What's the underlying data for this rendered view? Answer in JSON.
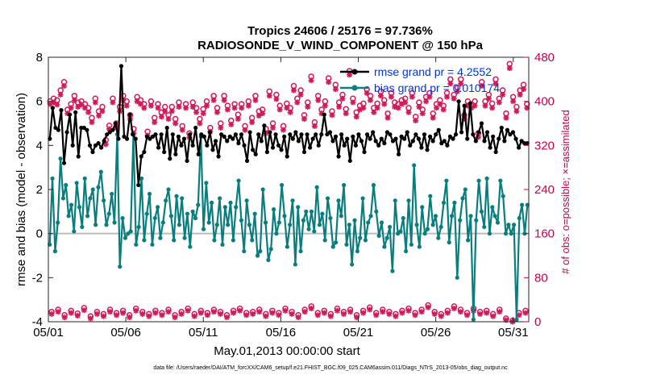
{
  "chart_data": {
    "type": "line",
    "title_line1": "Tropics 24606 / 25176 = 97.736%",
    "title_line2": "RADIOSONDE_V_WIND_COMPONENT @ 150 hPa",
    "xlabel": "May.01,2013 00:00:00 start",
    "ylabel": "rmse and bias (model - observation)",
    "y2label": "# of obs: o=possible; ×=assimilated",
    "footnote": "data file: /Users/raeder/DAI/ATM_forcXX/CAM6_setup/f.e21.FHIST_BGC.f09_025.CAM6assim.011/Diags_NTrS_2013-05/obs_diag_output.nc",
    "xlim": [
      1,
      32
    ],
    "ylim": [
      -4,
      8
    ],
    "y2lim": [
      0,
      480
    ],
    "x_ticks": [
      1,
      6,
      11,
      16,
      21,
      26,
      31
    ],
    "x_tick_labels": [
      "05/01",
      "05/06",
      "05/11",
      "05/16",
      "05/21",
      "05/26",
      "05/31"
    ],
    "y_ticks": [
      "-4",
      "-2",
      "0",
      "2",
      "4",
      "6",
      "8"
    ],
    "y2_ticks": [
      "0",
      "80",
      "160",
      "240",
      "320",
      "400",
      "480"
    ],
    "series": [
      {
        "name": "rmse",
        "legend": "rmse grand pr = 4.2552",
        "color": "#000000",
        "values": [
          4.3,
          5.7,
          4.8,
          4.7,
          5.6,
          3.2,
          4.6,
          5.4,
          4.0,
          5.5,
          3.5,
          4.8,
          4.8,
          4.7,
          4.0,
          3.7,
          4.0,
          4.1,
          3.9,
          4.2,
          4.5,
          4.6,
          4.7,
          5.0,
          4.3,
          7.6,
          4.4,
          4.3,
          5.4,
          4.5,
          4.3,
          2.2,
          3.5,
          3.7,
          4.4,
          4.3,
          4.4,
          4.5,
          3.9,
          4.5,
          3.7,
          4.8,
          3.4,
          4.5,
          3.6,
          4.4,
          4.0,
          4.3,
          3.3,
          4.5,
          4.0,
          4.8,
          3.6,
          4.5,
          4.4,
          4.0,
          4.6,
          3.8,
          4.2,
          3.5,
          4.5,
          4.4,
          4.2,
          4.4,
          4.3,
          4.5,
          4.1,
          4.5,
          4.0,
          3.3,
          4.6,
          3.8,
          3.6,
          4.5,
          4.2,
          4.9,
          3.7,
          4.6,
          3.9,
          4.5,
          4.0,
          3.8,
          4.4,
          3.5,
          4.5,
          4.3,
          4.6,
          4.2,
          4.5,
          3.7,
          4.5,
          3.9,
          4.3,
          4.5,
          4.0,
          4.5,
          5.4,
          4.5,
          4.6,
          4.2,
          4.4,
          3.5,
          4.5,
          4.0,
          4.3,
          3.3,
          4.4,
          4.0,
          4.5,
          4.2,
          3.7,
          4.5,
          4.3,
          4.6,
          4.2,
          4.0,
          4.3,
          4.1,
          4.6,
          4.5,
          4.2,
          4.3,
          3.6,
          4.4,
          4.3,
          4.6,
          4.0,
          4.2,
          4.5,
          4.3,
          3.9,
          4.5,
          3.8,
          4.4,
          4.2,
          4.5,
          4.7,
          4.1,
          4.2,
          4.0,
          4.4,
          4.3,
          4.5,
          6.0,
          4.6,
          5.8,
          4.3,
          5.9,
          4.5,
          4.2,
          4.6,
          5.0,
          4.2,
          4.6,
          3.9,
          4.4,
          3.7,
          4.3,
          4.8,
          4.2,
          4.7,
          4.5,
          4.6,
          4.3,
          3.9,
          4.2,
          4.1,
          4.1
        ]
      },
      {
        "name": "bias",
        "legend": "bias grand pr = 0.010174",
        "color": "#0a7d7d",
        "values": [
          -0.5,
          2.5,
          -0.8,
          0.5,
          3.4,
          1.6,
          2.2,
          0.8,
          1.3,
          0.1,
          2.3,
          1.2,
          0.3,
          2.5,
          0.8,
          1.6,
          2.0,
          0.4,
          2.1,
          2.8,
          1.5,
          0.4,
          0.9,
          1.8,
          0.5,
          4.5,
          -1.5,
          0.7,
          -0.2,
          0.0,
          0.1,
          4.5,
          -0.5,
          0.3,
          2.5,
          -0.3,
          0.9,
          1.8,
          -0.5,
          0.7,
          1.2,
          -0.2,
          0.5,
          1.5,
          2.0,
          0.8,
          -0.3,
          1.7,
          0.4,
          1.6,
          -0.2,
          0.9,
          -0.6,
          1.0,
          0.7,
          1.3,
          4.4,
          0.2,
          2.3,
          0.5,
          1.4,
          -0.3,
          0.4,
          1.6,
          -0.5,
          1.2,
          0.4,
          1.4,
          -0.3,
          1.2,
          2.4,
          0.6,
          -0.8,
          1.5,
          0.4,
          -0.3,
          0.9,
          -1.0,
          -0.8,
          2.0,
          0.5,
          -1.2,
          -0.7,
          1.1,
          0.0,
          0.5,
          2.2,
          0.8,
          -0.6,
          0.4,
          1.5,
          -1.4,
          1.2,
          -0.8,
          0.6,
          1.0,
          0.2,
          1.0,
          0.1,
          2.1,
          0.4,
          0.9,
          -0.3,
          1.6,
          0.7,
          -0.6,
          -0.4,
          1.5,
          0.8,
          2.2,
          -0.5,
          0.4,
          -1.4,
          0.6,
          -0.8,
          -0.2,
          1.6,
          -0.3,
          0.5,
          0.8,
          2.2,
          1.0,
          -0.1,
          0.5,
          -0.6,
          -0.2,
          0.3,
          -1.7,
          1.5,
          0.0,
          0.1,
          0.7,
          -0.8,
          1.5,
          -0.5,
          3.1,
          0.4,
          -0.6,
          1.2,
          0.0,
          0.2,
          1.7,
          0.4,
          0.8,
          -0.2,
          0.3,
          1.4,
          2.4,
          -0.4,
          0.8,
          1.4,
          -2.0,
          0.6,
          1.6,
          2.0,
          -0.3,
          0.8,
          -3.9,
          0.6,
          2.4,
          1.0,
          0.3,
          2.5,
          0.0,
          1.2,
          0.8,
          0.5,
          2.4,
          1.7,
          0.0,
          0.4,
          0.0,
          0.4,
          -3.9,
          0.7,
          1.3,
          0.0,
          1.3
        ]
      },
      {
        "name": "obs_possible",
        "marker": "o",
        "color": "#d01a5a",
        "axis": "right",
        "values": [
          400,
          405,
          402,
          420,
          435,
          385,
          395,
          410,
          398,
          400,
          395,
          388,
          370,
          405,
          382,
          390,
          330,
          356,
          405,
          360,
          390,
          410,
          400,
          375,
          350,
          408,
          402,
          395,
          345,
          400,
          370,
          395,
          380,
          390,
          375,
          390,
          368,
          398,
          355,
          395,
          342,
          398,
          388,
          368,
          386,
          400,
          352,
          410,
          388,
          360,
          410,
          392,
          365,
          395,
          376,
          395,
          355,
          400,
          370,
          410,
          382,
          385,
          350,
          418,
          360,
          412,
          392,
          355,
          396,
          388,
          428,
          405,
          420,
          375,
          398,
          445,
          362,
          410,
          385,
          400,
          442,
          382,
          430,
          398,
          412,
          386,
          455,
          405,
          380,
          392,
          396,
          422,
          410,
          388,
          396,
          418,
          402,
          378,
          415,
          398,
          395,
          402,
          405,
          388,
          415,
          372,
          398,
          385,
          408,
          415,
          378,
          395,
          402,
          392,
          415,
          440,
          412,
          425,
          440,
          375,
          400,
          395,
          400,
          342,
          435,
          400,
          412,
          396,
          440,
          405,
          420,
          378,
          468,
          408,
          390,
          420,
          430,
          395
        ]
      },
      {
        "name": "obs_assimilated",
        "marker": "*",
        "color": "#d01a5a",
        "axis": "right",
        "values": [
          395,
          398,
          394,
          412,
          428,
          378,
          388,
          402,
          390,
          394,
          388,
          380,
          362,
          398,
          374,
          382,
          322,
          350,
          398,
          352,
          382,
          402,
          392,
          368,
          342,
          400,
          395,
          388,
          338,
          392,
          362,
          388,
          372,
          382,
          368,
          382,
          360,
          390,
          348,
          388,
          335,
          390,
          380,
          360,
          378,
          392,
          345,
          402,
          380,
          352,
          402,
          385,
          358,
          388,
          368,
          388,
          348,
          392,
          362,
          402,
          374,
          378,
          342,
          410,
          352,
          404,
          385,
          348,
          388,
          380,
          420,
          398,
          412,
          368,
          390,
          438,
          355,
          402,
          378,
          392,
          435,
          375,
          422,
          390,
          405,
          378,
          448,
          398,
          372,
          385,
          388,
          415,
          402,
          380,
          388,
          410,
          395,
          370,
          408,
          390,
          388,
          395,
          398,
          380,
          408,
          365,
          390,
          378,
          400,
          408,
          370,
          388,
          395,
          385,
          408,
          432,
          405,
          418,
          432,
          368,
          392,
          388,
          392,
          335,
          428,
          392,
          405,
          388,
          432,
          398,
          412,
          370,
          460,
          400,
          382,
          412,
          422,
          388
        ]
      },
      {
        "name": "obs_bottom_possible",
        "marker": "o",
        "color": "#d01a5a",
        "axis": "right",
        "values": [
          18,
          22,
          12,
          20,
          15,
          25,
          10,
          18,
          14,
          22,
          16,
          20,
          12,
          24,
          18,
          14,
          20,
          16,
          22,
          12,
          18,
          24,
          14,
          20,
          16,
          22,
          18,
          12,
          20,
          24,
          16,
          18,
          22,
          14,
          20,
          16,
          24,
          18,
          12,
          22,
          28,
          16,
          20,
          14,
          24,
          18,
          22,
          12,
          20,
          26,
          16,
          22,
          18,
          14,
          20,
          24,
          16,
          22,
          30,
          18,
          14,
          20,
          28,
          22,
          16,
          24,
          18,
          20,
          14,
          22,
          6,
          2,
          16,
          20
        ]
      },
      {
        "name": "obs_bottom_assimilated",
        "marker": "*",
        "color": "#d01a5a",
        "axis": "right",
        "values": [
          14,
          18,
          8,
          16,
          11,
          21,
          6,
          14,
          10,
          18,
          12,
          16,
          8,
          20,
          14,
          10,
          16,
          12,
          18,
          8,
          14,
          20,
          10,
          16,
          12,
          18,
          14,
          8,
          16,
          20,
          12,
          14,
          18,
          10,
          16,
          12,
          20,
          14,
          8,
          18,
          24,
          12,
          16,
          10,
          20,
          14,
          18,
          8,
          16,
          22,
          12,
          18,
          14,
          10,
          16,
          20,
          12,
          18,
          26,
          14,
          10,
          16,
          24,
          18,
          12,
          20,
          14,
          16,
          10,
          18,
          3,
          0,
          12,
          16
        ]
      }
    ]
  }
}
